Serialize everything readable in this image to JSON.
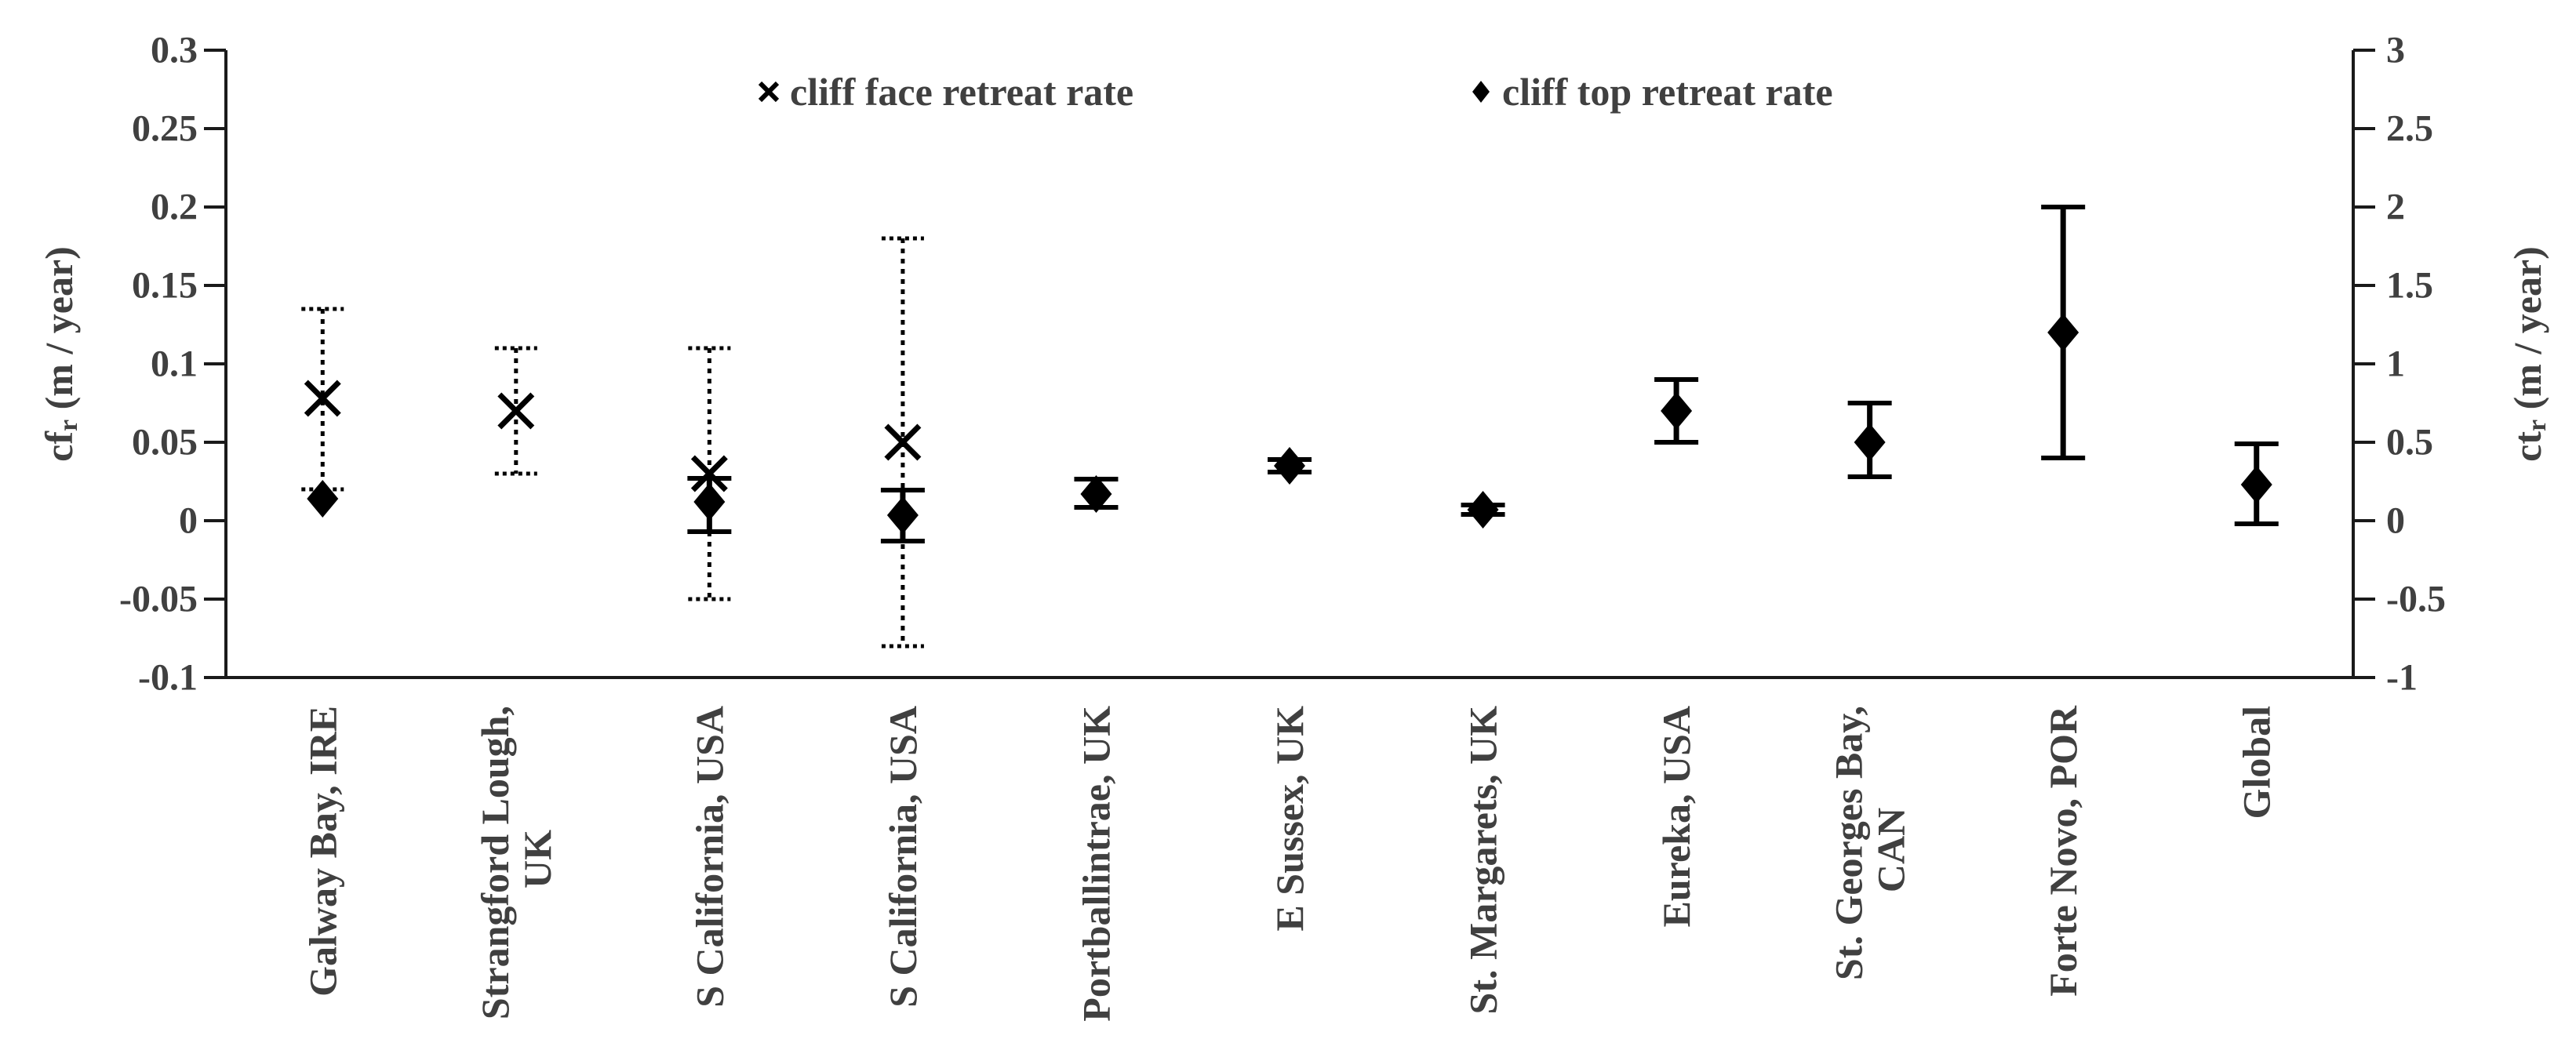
{
  "page": {
    "background": "#ffffff"
  },
  "colors": {
    "marker": "#000000",
    "axis": "#1a1a1a",
    "text": "#404040"
  },
  "chart_data": {
    "type": "scatter",
    "title": "",
    "grid": false,
    "legend_position": "top-center",
    "legend": [
      {
        "label": "cliff face retreat rate",
        "marker": "x"
      },
      {
        "label": "cliff top retreat rate",
        "marker": "diamond"
      }
    ],
    "left_axis": {
      "title_main": "cf",
      "title_sub": "r",
      "title_rest": " (m / year)",
      "min": -0.1,
      "max": 0.3,
      "ticks": [
        "0.3",
        "0.25",
        "0.2",
        "0.15",
        "0.1",
        "0.05",
        "0",
        "-0.05",
        "-0.1"
      ]
    },
    "right_axis": {
      "title_main": "ct",
      "title_sub": "r",
      "title_rest": " (m / year)",
      "min": -1,
      "max": 3,
      "ticks": [
        "3",
        "2.5",
        "2",
        "1.5",
        "1",
        "0.5",
        "0",
        "-0.5",
        "-1"
      ]
    },
    "categories": [
      [
        "Galway Bay, IRE"
      ],
      [
        "Strangford Lough,",
        "UK"
      ],
      [
        "S California, USA"
      ],
      [
        "S California, USA"
      ],
      [
        "Portballintrae, UK"
      ],
      [
        "E Sussex, UK"
      ],
      [
        "St. Margarets, UK"
      ],
      [
        "Eureka, USA"
      ],
      [
        "St. Georges Bay,",
        "CAN"
      ],
      [
        "Forte Novo, POR"
      ],
      [
        "Global"
      ]
    ],
    "series": [
      {
        "name": "cliff face retreat rate",
        "axis": "left",
        "marker": "x",
        "error_style": "dotted",
        "points": [
          {
            "v": 0.078,
            "lo": 0.02,
            "hi": 0.135
          },
          {
            "v": 0.07,
            "lo": 0.03,
            "hi": 0.11
          },
          {
            "v": 0.03,
            "lo": -0.05,
            "hi": 0.11
          },
          {
            "v": 0.05,
            "lo": -0.08,
            "hi": 0.18
          },
          null,
          null,
          null,
          null,
          null,
          null,
          null
        ]
      },
      {
        "name": "cliff top retreat rate",
        "axis": "right",
        "marker": "diamond",
        "error_style": "solid",
        "points": [
          {
            "v": 0.14
          },
          null,
          {
            "v": 0.12,
            "lo": -0.07,
            "hi": 0.27
          },
          {
            "v": 0.035,
            "lo": -0.13,
            "hi": 0.195
          },
          {
            "v": 0.17,
            "lo": 0.085,
            "hi": 0.265
          },
          {
            "v": 0.35,
            "lo": 0.31,
            "hi": 0.39
          },
          {
            "v": 0.07,
            "lo": 0.04,
            "hi": 0.1
          },
          {
            "v": 0.7,
            "lo": 0.5,
            "hi": 0.9
          },
          {
            "v": 0.5,
            "lo": 0.28,
            "hi": 0.75
          },
          {
            "v": 1.2,
            "lo": 0.4,
            "hi": 2.0
          },
          {
            "v": 0.23,
            "lo": -0.02,
            "hi": 0.49
          }
        ]
      }
    ]
  }
}
